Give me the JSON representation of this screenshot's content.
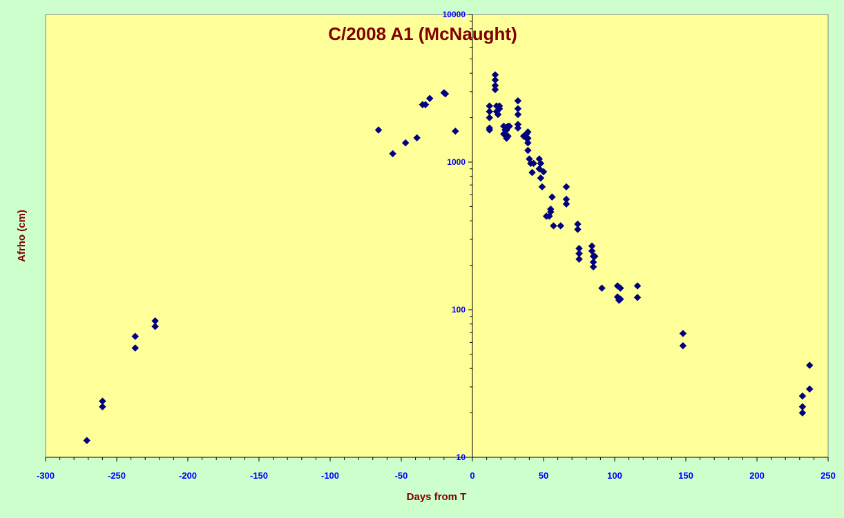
{
  "chart_data": {
    "type": "scatter",
    "title": "C/2008 A1 (McNaught)",
    "xlabel": "Days from T",
    "ylabel": "Afrho (cm)",
    "xlim": [
      -300,
      250
    ],
    "ylim": [
      10,
      10000
    ],
    "yscale": "log",
    "x_ticks": [
      "-300",
      "-250",
      "-200",
      "-150",
      "-100",
      "-50",
      "0",
      "50",
      "100",
      "150",
      "200",
      "250"
    ],
    "y_ticks": [
      "10",
      "100",
      "1000",
      "10000"
    ],
    "grid": false,
    "legend": "none",
    "marker": "diamond",
    "colors": {
      "background": "#ccffcc",
      "plot_area": "#ffff99",
      "marker": "#000080",
      "title": "#800000",
      "tick_labels": "#0000ff"
    },
    "series": [
      {
        "points": [
          [
            -271,
            13
          ],
          [
            -260,
            22
          ],
          [
            -260,
            24
          ],
          [
            -237,
            55
          ],
          [
            -237,
            66
          ],
          [
            -223,
            77
          ],
          [
            -223,
            84
          ],
          [
            -66,
            1650
          ],
          [
            -56,
            1140
          ],
          [
            -47,
            1350
          ],
          [
            -39,
            1460
          ],
          [
            -35,
            2450
          ],
          [
            -33,
            2450
          ],
          [
            -30,
            2700
          ],
          [
            -20,
            2950
          ],
          [
            -19,
            2900
          ],
          [
            -12,
            1620
          ],
          [
            12,
            1650
          ],
          [
            12,
            1700
          ],
          [
            12,
            2000
          ],
          [
            12,
            2200
          ],
          [
            12,
            2400
          ],
          [
            16,
            3100
          ],
          [
            16,
            3300
          ],
          [
            16,
            3600
          ],
          [
            16,
            3900
          ],
          [
            17,
            2200
          ],
          [
            17,
            2400
          ],
          [
            18,
            2100
          ],
          [
            19,
            2300
          ],
          [
            19,
            2400
          ],
          [
            22,
            1550
          ],
          [
            22,
            1750
          ],
          [
            23,
            1650
          ],
          [
            24,
            1450
          ],
          [
            24,
            1650
          ],
          [
            25,
            1500
          ],
          [
            25,
            1750
          ],
          [
            26,
            1750
          ],
          [
            32,
            1700
          ],
          [
            32,
            1800
          ],
          [
            32,
            2100
          ],
          [
            32,
            2300
          ],
          [
            32,
            2600
          ],
          [
            36,
            1500
          ],
          [
            37,
            1500
          ],
          [
            38,
            1450
          ],
          [
            38,
            1550
          ],
          [
            39,
            1200
          ],
          [
            39,
            1350
          ],
          [
            39,
            1450
          ],
          [
            39,
            1600
          ],
          [
            40,
            1050
          ],
          [
            41,
            980
          ],
          [
            42,
            850
          ],
          [
            43,
            980
          ],
          [
            47,
            1050
          ],
          [
            47,
            900
          ],
          [
            48,
            980
          ],
          [
            48,
            780
          ],
          [
            49,
            680
          ],
          [
            50,
            860
          ],
          [
            52,
            430
          ],
          [
            54,
            430
          ],
          [
            55,
            460
          ],
          [
            55,
            480
          ],
          [
            56,
            580
          ],
          [
            57,
            370
          ],
          [
            62,
            370
          ],
          [
            66,
            680
          ],
          [
            66,
            560
          ],
          [
            66,
            520
          ],
          [
            74,
            380
          ],
          [
            74,
            350
          ],
          [
            75,
            260
          ],
          [
            75,
            240
          ],
          [
            75,
            220
          ],
          [
            84,
            270
          ],
          [
            84,
            250
          ],
          [
            85,
            230
          ],
          [
            85,
            210
          ],
          [
            85,
            195
          ],
          [
            86,
            230
          ],
          [
            91,
            140
          ],
          [
            102,
            145
          ],
          [
            102,
            122
          ],
          [
            103,
            116
          ],
          [
            104,
            118
          ],
          [
            104,
            140
          ],
          [
            116,
            145
          ],
          [
            116,
            121
          ],
          [
            148,
            57
          ],
          [
            148,
            69
          ],
          [
            232,
            20
          ],
          [
            232,
            22
          ],
          [
            232,
            26
          ],
          [
            237,
            29
          ],
          [
            237,
            42
          ]
        ]
      }
    ]
  }
}
